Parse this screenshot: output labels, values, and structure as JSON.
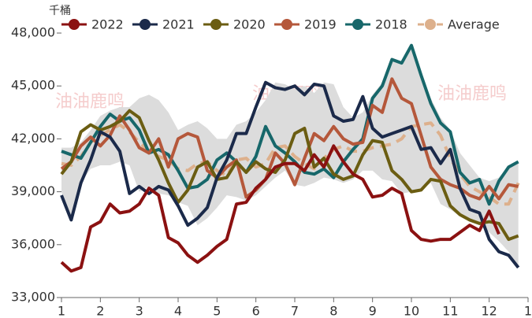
{
  "chart_data": {
    "type": "line",
    "unit_label": "千桶",
    "watermark": "油油鹿鸣",
    "x": [
      1,
      1.25,
      1.5,
      1.75,
      2,
      2.25,
      2.5,
      2.75,
      3,
      3.25,
      3.5,
      3.75,
      4,
      4.25,
      4.5,
      4.75,
      5,
      5.25,
      5.5,
      5.75,
      6,
      6.25,
      6.5,
      6.75,
      7,
      7.25,
      7.5,
      7.75,
      8,
      8.25,
      8.5,
      8.75,
      9,
      9.25,
      9.5,
      9.75,
      10,
      10.25,
      10.5,
      10.75,
      11,
      11.25,
      11.5,
      11.75,
      12,
      12.25,
      12.5,
      12.75
    ],
    "xlim": [
      1,
      13
    ],
    "xticks": [
      1,
      2,
      3,
      4,
      5,
      6,
      7,
      8,
      9,
      10,
      11,
      12,
      {
        "value": 13,
        "label": "1"
      }
    ],
    "ylim": [
      33000,
      48000
    ],
    "yticks": [
      {
        "value": 33000,
        "label": "33,000"
      },
      {
        "value": 36000,
        "label": "36,000"
      },
      {
        "value": 39000,
        "label": "39,000"
      },
      {
        "value": 42000,
        "label": "42,000"
      },
      {
        "value": 45000,
        "label": "45,000"
      },
      {
        "value": 48000,
        "label": "48,000"
      }
    ],
    "band": {
      "color": "#dcdcdc",
      "high": [
        41500,
        41500,
        41800,
        42500,
        43300,
        43600,
        43800,
        43800,
        44300,
        44500,
        44200,
        43500,
        42500,
        42800,
        43000,
        42600,
        42000,
        42000,
        42800,
        43000,
        43500,
        44200,
        45200,
        45100,
        44800,
        45000,
        44600,
        45200,
        45100,
        43800,
        43200,
        43500,
        44500,
        45200,
        46600,
        46400,
        47300,
        45700,
        44300,
        43200,
        42500,
        41200,
        40500,
        39800,
        39600,
        39800,
        40500,
        40700
      ],
      "low": [
        39000,
        37400,
        39500,
        40300,
        40500,
        40500,
        40700,
        40500,
        39000,
        39300,
        38900,
        38800,
        38400,
        38200,
        37100,
        37500,
        38100,
        38800,
        38700,
        38500,
        38800,
        39300,
        39800,
        40200,
        39400,
        39300,
        39500,
        39800,
        39700,
        39500,
        39700,
        40200,
        40200,
        39700,
        39600,
        38900,
        39000,
        39100,
        39500,
        38300,
        38000,
        37600,
        37300,
        37100,
        36700,
        36200,
        35600,
        34700
      ]
    },
    "series": [
      {
        "name": "2022",
        "color": "#8b1111",
        "values": [
          35000,
          34500,
          34700,
          37000,
          37300,
          38300,
          37800,
          37900,
          38300,
          39200,
          38800,
          36400,
          36100,
          35400,
          35000,
          35400,
          35900,
          36300,
          38300,
          38400,
          39200,
          39700,
          40400,
          40600,
          40600,
          40200,
          41100,
          40400,
          41600,
          40700,
          40000,
          39700,
          38700,
          38800,
          39200,
          38900,
          36800,
          36300,
          36200,
          36300,
          36300,
          36700,
          37100,
          36800,
          37900,
          36600,
          null,
          null
        ]
      },
      {
        "name": "2021",
        "color": "#1b2a4a",
        "values": [
          38800,
          37400,
          39500,
          40800,
          42400,
          42100,
          41300,
          38900,
          39300,
          38900,
          39300,
          39100,
          38200,
          37100,
          37500,
          38100,
          39800,
          40800,
          42300,
          42300,
          43800,
          45200,
          44900,
          44800,
          45000,
          44500,
          45100,
          45000,
          43300,
          43000,
          43100,
          44400,
          42600,
          42100,
          42300,
          42500,
          42700,
          41400,
          41500,
          40600,
          41400,
          39200,
          38000,
          37800,
          36300,
          35600,
          35400,
          34700
        ]
      },
      {
        "name": "2020",
        "color": "#6b5d12",
        "values": [
          40000,
          40700,
          42400,
          42800,
          42500,
          42700,
          43000,
          43600,
          43200,
          41900,
          40800,
          39500,
          38400,
          39100,
          40400,
          40700,
          39700,
          39800,
          40700,
          40100,
          40700,
          40300,
          40100,
          40800,
          42300,
          42600,
          40400,
          40900,
          40000,
          39700,
          39900,
          41100,
          41900,
          41800,
          40200,
          39700,
          39000,
          39100,
          39700,
          39600,
          38200,
          37700,
          37400,
          37200,
          37300,
          37200,
          36300,
          36500
        ]
      },
      {
        "name": "2019",
        "color": "#b5583b",
        "values": [
          40300,
          40700,
          41600,
          42100,
          41600,
          42200,
          43300,
          42500,
          41500,
          41200,
          42000,
          40400,
          42000,
          42300,
          42100,
          40200,
          39800,
          40400,
          40800,
          38700,
          39100,
          39700,
          41200,
          40600,
          39400,
          40900,
          42300,
          41900,
          42700,
          42000,
          41700,
          41800,
          43900,
          43500,
          45400,
          44300,
          44000,
          42200,
          40400,
          39700,
          39400,
          39200,
          38800,
          38600,
          39300,
          38600,
          39400,
          39300
        ]
      },
      {
        "name": "2018",
        "color": "#17676a",
        "values": [
          41300,
          41100,
          40900,
          41800,
          42700,
          43400,
          43000,
          43200,
          42500,
          41200,
          41400,
          41100,
          40200,
          39200,
          39300,
          39700,
          40800,
          41200,
          40700,
          40100,
          41000,
          42700,
          41600,
          41200,
          40700,
          40100,
          40000,
          40300,
          39800,
          40700,
          41400,
          42000,
          44300,
          45000,
          46500,
          46300,
          47300,
          45600,
          44000,
          42900,
          42400,
          40100,
          39500,
          39700,
          38300,
          39600,
          40400,
          40700
        ]
      },
      {
        "name": "Average",
        "color": "#ddb08c",
        "dashed": true,
        "values": [
          40600,
          40500,
          41000,
          41800,
          42200,
          42500,
          42800,
          42400,
          41800,
          41300,
          41000,
          40800,
          40300,
          40200,
          40600,
          40700,
          40200,
          39900,
          40800,
          40900,
          40400,
          40600,
          41500,
          41600,
          41000,
          40600,
          40300,
          40900,
          41400,
          41600,
          41300,
          41300,
          41500,
          41600,
          41700,
          42000,
          42700,
          42800,
          42900,
          42200,
          40900,
          40000,
          39300,
          39000,
          38700,
          38300,
          38300,
          39500
        ]
      }
    ]
  }
}
